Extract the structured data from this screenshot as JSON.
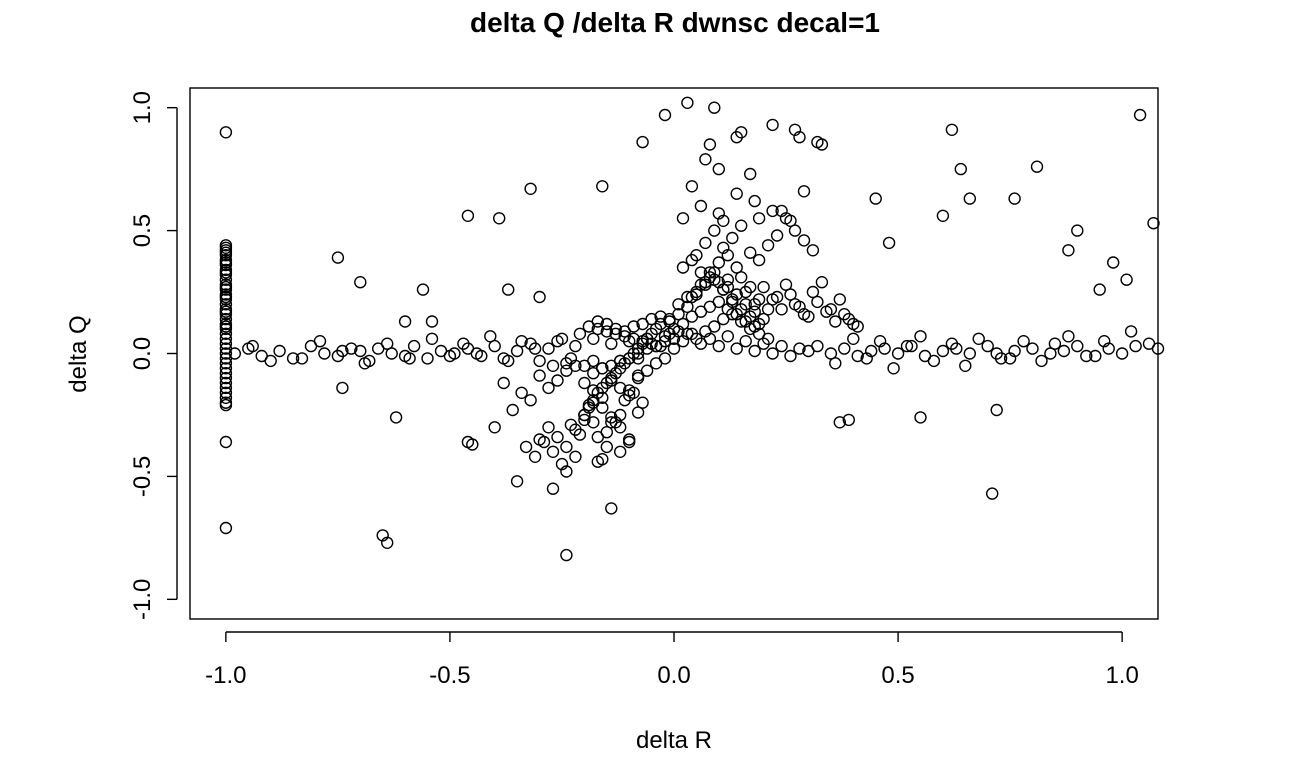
{
  "chart_data": {
    "type": "scatter",
    "title": "delta Q /delta R dwnsc decal=1",
    "xlabel": "delta R",
    "ylabel": "delta Q",
    "xlim": [
      -1.08,
      1.08
    ],
    "ylim": [
      -1.08,
      1.08
    ],
    "xticks": [
      -1.0,
      -0.5,
      0.0,
      0.5,
      1.0
    ],
    "xtick_labels": [
      "-1.0",
      "-0.5",
      "0.0",
      "0.5",
      "1.0"
    ],
    "yticks": [
      -1.0,
      -0.5,
      0.0,
      0.5,
      1.0
    ],
    "ytick_labels": [
      "-1.0",
      "-0.5",
      "0.0",
      "0.5",
      "1.0"
    ],
    "marker": "open-circle",
    "marker_color": "#000000",
    "grid": false,
    "x": [
      -1.0,
      -1.0,
      -1.0,
      -1.0,
      -1.0,
      -1.0,
      -1.0,
      -1.0,
      -1.0,
      -1.0,
      -1.0,
      -1.0,
      -1.0,
      -1.0,
      -1.0,
      -1.0,
      -1.0,
      -1.0,
      -1.0,
      -1.0,
      -1.0,
      -1.0,
      -1.0,
      -1.0,
      -1.0,
      -1.0,
      -1.0,
      -1.0,
      -1.0,
      -1.0,
      -1.0,
      -1.0,
      -1.0,
      -1.0,
      -1.0,
      -1.0,
      -1.0,
      -1.0,
      -1.0,
      -1.0,
      -1.0,
      -1.0,
      -0.98,
      -0.95,
      -0.92,
      -0.88,
      -0.85,
      -0.81,
      -0.78,
      -0.75,
      -0.72,
      -0.7,
      -0.68,
      -0.66,
      -0.63,
      -0.6,
      -0.58,
      -0.55,
      -0.52,
      -0.49,
      -0.46,
      -0.43,
      -0.4,
      -0.38,
      -0.35,
      -0.32,
      -0.3,
      -0.28,
      -0.26,
      -0.24,
      -0.22,
      -0.2,
      -0.18,
      -0.16,
      -0.14,
      -0.12,
      -0.1,
      -0.08,
      -0.06,
      -0.04,
      -0.02,
      0.0,
      0.02,
      0.04,
      0.06,
      0.08,
      0.1,
      0.12,
      0.14,
      0.16,
      0.18,
      0.2,
      0.22,
      0.24,
      0.26,
      0.28,
      0.3,
      0.32,
      0.35,
      0.38,
      0.41,
      0.44,
      0.47,
      0.5,
      0.53,
      0.56,
      0.6,
      0.63,
      0.66,
      0.7,
      0.73,
      0.76,
      0.8,
      0.84,
      0.87,
      0.9,
      0.94,
      0.97,
      1.0,
      1.03,
      1.06,
      1.08,
      -0.94,
      -0.9,
      -0.83,
      -0.79,
      -0.74,
      -0.69,
      -0.64,
      -0.59,
      -0.54,
      -0.5,
      -0.47,
      -0.44,
      -0.41,
      -0.37,
      -0.34,
      -0.31,
      -0.27,
      -0.25,
      -0.23,
      -0.21,
      0.36,
      0.4,
      0.43,
      0.46,
      0.49,
      0.52,
      0.55,
      0.58,
      0.62,
      0.65,
      0.68,
      0.72,
      0.75,
      0.78,
      0.82,
      0.85,
      0.88,
      0.92,
      0.96,
      1.02,
      -0.2,
      -0.19,
      -0.18,
      -0.17,
      -0.16,
      -0.15,
      -0.14,
      -0.13,
      -0.12,
      -0.11,
      -0.1,
      -0.09,
      -0.08,
      -0.07,
      -0.06,
      -0.05,
      -0.04,
      -0.03,
      -0.01,
      0.01,
      -0.18,
      -0.16,
      -0.14,
      -0.12,
      -0.1,
      -0.08,
      -0.06,
      -0.04,
      -0.02,
      0.0,
      -0.17,
      -0.15,
      -0.13,
      -0.11,
      -0.09,
      -0.07,
      -0.05,
      -0.03,
      -0.01,
      0.01,
      -0.2,
      -0.18,
      -0.16,
      -0.14,
      -0.12,
      -0.1,
      -0.08,
      -0.06,
      -0.04,
      -0.02,
      -0.19,
      -0.17,
      -0.15,
      -0.13,
      -0.11,
      -0.09,
      -0.07,
      -0.05,
      -0.03,
      -0.01,
      0.01,
      0.03,
      0.05,
      0.07,
      0.09,
      0.11,
      0.13,
      0.15,
      0.17,
      0.19,
      0.02,
      0.04,
      0.06,
      0.08,
      0.1,
      0.12,
      0.14,
      0.16,
      0.18,
      0.2,
      0.0,
      0.02,
      0.04,
      0.06,
      0.08,
      0.1,
      0.12,
      0.14,
      0.16,
      0.18,
      0.03,
      0.05,
      0.07,
      0.09,
      0.11,
      0.13,
      0.15,
      0.17,
      0.19,
      0.21,
      0.05,
      0.07,
      0.09,
      0.11,
      0.13,
      0.15,
      0.17,
      0.19,
      0.21,
      0.23,
      0.25,
      0.27,
      0.29,
      0.31,
      0.06,
      0.1,
      0.14,
      0.18,
      0.22,
      0.26,
      -0.16,
      -0.14,
      -0.12,
      -0.1,
      -0.08,
      -0.15,
      -0.13,
      -0.11,
      -0.09,
      -0.07,
      -0.18,
      -0.17,
      -0.15,
      -0.12,
      -0.1,
      -0.28,
      -0.26,
      -0.24,
      -0.22,
      -0.2,
      -0.3,
      -0.27,
      -0.25,
      -0.23,
      -0.21,
      -0.19,
      -0.33,
      -0.31,
      -0.29,
      -0.24,
      -0.22,
      -0.2,
      -0.18,
      -0.16,
      -0.14,
      -0.36,
      -0.38,
      -0.34,
      -0.32,
      -0.3,
      -0.28,
      -0.26,
      -0.24,
      -0.22,
      -0.18,
      -0.45,
      -0.46,
      -0.4,
      -0.35,
      -0.27,
      -0.17,
      -0.14,
      -0.12,
      -0.1,
      -0.08,
      0.04,
      0.06,
      0.08,
      0.1,
      0.12,
      0.14,
      0.16,
      0.18,
      0.2,
      0.22,
      0.24,
      0.26,
      0.28,
      0.3,
      0.32,
      0.34,
      0.36,
      0.38,
      0.4,
      0.12,
      0.03,
      0.05,
      0.07,
      0.09,
      0.11,
      0.13,
      0.15,
      0.17,
      0.19,
      0.21,
      0.23,
      0.25,
      0.27,
      0.29,
      0.31,
      0.33,
      0.35,
      0.37,
      0.39,
      0.41,
      -1.0,
      -1.0,
      -1.0,
      -0.62,
      -0.64,
      -0.65,
      -0.74,
      -0.75,
      -0.7,
      -0.6,
      -0.56,
      -0.54,
      -0.46,
      -0.39,
      -0.37,
      -0.32,
      -0.3,
      -0.24,
      -0.16,
      -0.07,
      -0.02,
      0.02,
      0.03,
      0.04,
      0.09,
      0.1,
      0.14,
      0.15,
      0.22,
      0.27,
      0.28,
      0.32,
      0.33,
      0.62,
      0.64,
      0.76,
      0.81,
      1.04,
      1.07,
      0.71,
      0.72,
      0.55,
      0.37,
      0.39,
      0.45,
      0.48,
      0.6,
      0.66,
      0.88,
      0.9,
      0.95,
      0.98,
      1.01,
      0.08,
      0.11,
      0.24,
      0.29,
      0.17,
      0.19,
      0.07
    ],
    "y": [
      0.44,
      0.42,
      0.4,
      0.38,
      0.36,
      0.34,
      0.32,
      0.3,
      0.28,
      0.26,
      0.24,
      0.22,
      0.2,
      0.18,
      0.16,
      0.14,
      0.12,
      0.1,
      0.08,
      0.06,
      0.04,
      0.02,
      0.0,
      -0.02,
      -0.04,
      -0.06,
      -0.08,
      -0.1,
      -0.12,
      -0.14,
      -0.16,
      -0.18,
      -0.2,
      -0.21,
      0.43,
      0.41,
      0.37,
      0.33,
      0.27,
      0.23,
      0.17,
      0.11,
      0.0,
      0.02,
      -0.01,
      0.01,
      -0.02,
      0.03,
      0.0,
      -0.01,
      0.02,
      0.01,
      -0.03,
      0.02,
      0.0,
      -0.01,
      0.03,
      -0.02,
      0.01,
      0.0,
      0.02,
      -0.01,
      0.03,
      -0.02,
      0.01,
      0.04,
      -0.03,
      0.02,
      0.05,
      -0.04,
      0.03,
      -0.05,
      0.06,
      -0.06,
      0.04,
      -0.03,
      0.05,
      -0.02,
      0.06,
      0.03,
      0.07,
      0.02,
      0.05,
      0.08,
      0.04,
      0.06,
      0.03,
      0.07,
      0.02,
      0.05,
      0.01,
      0.04,
      0.0,
      0.03,
      -0.01,
      0.02,
      0.01,
      0.03,
      0.0,
      0.02,
      -0.01,
      0.01,
      0.02,
      0.0,
      0.03,
      -0.01,
      0.01,
      0.02,
      0.0,
      0.03,
      -0.02,
      0.01,
      0.02,
      0.0,
      0.01,
      0.03,
      -0.01,
      0.02,
      0.0,
      0.03,
      0.04,
      0.02,
      0.03,
      -0.03,
      -0.02,
      0.05,
      0.01,
      -0.04,
      0.04,
      -0.02,
      0.06,
      -0.01,
      0.04,
      0.0,
      0.07,
      -0.03,
      0.05,
      0.02,
      -0.05,
      0.06,
      -0.02,
      0.08,
      -0.04,
      0.06,
      -0.02,
      0.05,
      -0.06,
      0.03,
      0.07,
      -0.03,
      0.04,
      -0.05,
      0.06,
      0.0,
      -0.02,
      0.05,
      -0.03,
      0.04,
      0.07,
      -0.01,
      0.05,
      0.09,
      -0.25,
      -0.22,
      -0.19,
      -0.16,
      -0.14,
      -0.12,
      -0.1,
      -0.08,
      -0.06,
      -0.04,
      -0.02,
      0.0,
      0.02,
      0.04,
      0.06,
      0.08,
      0.1,
      0.12,
      0.14,
      0.16,
      -0.08,
      -0.06,
      -0.05,
      -0.03,
      -0.02,
      0.0,
      0.02,
      0.03,
      0.05,
      0.06,
      0.1,
      0.09,
      0.08,
      0.07,
      0.06,
      0.05,
      0.04,
      0.03,
      0.08,
      0.09,
      -0.12,
      -0.15,
      -0.18,
      -0.11,
      -0.14,
      -0.17,
      -0.09,
      -0.07,
      -0.04,
      -0.02,
      0.11,
      0.13,
      0.12,
      0.1,
      0.09,
      0.11,
      0.12,
      0.14,
      0.15,
      0.13,
      0.2,
      0.23,
      0.25,
      0.28,
      0.3,
      0.26,
      0.22,
      0.18,
      0.15,
      0.12,
      0.35,
      0.38,
      0.33,
      0.31,
      0.29,
      0.27,
      0.24,
      0.2,
      0.17,
      0.14,
      0.1,
      0.12,
      0.15,
      0.17,
      0.19,
      0.21,
      0.18,
      0.16,
      0.13,
      0.11,
      0.08,
      0.06,
      0.09,
      0.11,
      0.14,
      0.16,
      0.13,
      0.1,
      0.08,
      0.06,
      0.4,
      0.45,
      0.5,
      0.43,
      0.47,
      0.52,
      0.41,
      0.38,
      0.44,
      0.48,
      0.55,
      0.5,
      0.46,
      0.42,
      0.6,
      0.57,
      0.65,
      0.62,
      0.58,
      0.54,
      -0.22,
      -0.26,
      -0.3,
      -0.35,
      -0.24,
      -0.32,
      -0.28,
      -0.19,
      -0.16,
      -0.2,
      -0.28,
      -0.34,
      -0.38,
      -0.4,
      -0.36,
      -0.3,
      -0.34,
      -0.38,
      -0.42,
      -0.27,
      -0.35,
      -0.4,
      -0.45,
      -0.29,
      -0.33,
      -0.21,
      -0.38,
      -0.42,
      -0.36,
      -0.48,
      -0.31,
      -0.25,
      -0.2,
      -0.43,
      -0.28,
      -0.23,
      -0.12,
      -0.16,
      -0.19,
      -0.09,
      -0.14,
      -0.11,
      -0.07,
      -0.05,
      -0.03,
      -0.37,
      -0.36,
      -0.3,
      -0.52,
      -0.55,
      -0.44,
      -0.63,
      -0.25,
      -0.15,
      -0.1,
      0.23,
      0.28,
      0.33,
      0.37,
      0.3,
      0.35,
      0.25,
      0.2,
      0.27,
      0.22,
      0.18,
      0.24,
      0.19,
      0.15,
      0.21,
      0.17,
      0.13,
      0.16,
      0.12,
      0.4,
      0.19,
      0.24,
      0.29,
      0.33,
      0.26,
      0.21,
      0.31,
      0.27,
      0.22,
      0.18,
      0.23,
      0.28,
      0.2,
      0.16,
      0.25,
      0.29,
      0.18,
      0.22,
      0.14,
      0.11,
      0.9,
      -0.36,
      -0.71,
      -0.26,
      -0.77,
      -0.74,
      -0.14,
      0.39,
      0.29,
      0.13,
      0.26,
      0.13,
      0.56,
      0.55,
      0.26,
      0.67,
      0.23,
      -0.82,
      0.68,
      0.86,
      0.97,
      0.55,
      1.02,
      0.68,
      1.0,
      0.75,
      0.88,
      0.9,
      0.93,
      0.91,
      0.88,
      0.86,
      0.85,
      0.91,
      0.75,
      0.63,
      0.76,
      0.97,
      0.53,
      -0.57,
      -0.23,
      -0.26,
      -0.28,
      -0.27,
      0.63,
      0.45,
      0.56,
      0.63,
      0.42,
      0.5,
      0.26,
      0.37,
      0.3,
      0.85,
      0.54,
      0.58,
      0.66,
      0.73,
      0.55,
      0.79
    ]
  }
}
